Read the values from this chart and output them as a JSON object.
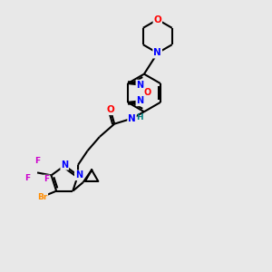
{
  "background_color": "#e8e8e8",
  "bond_color": "#000000",
  "atom_colors": {
    "N": "#0000ff",
    "O": "#ff0000",
    "Br": "#ff8c00",
    "F": "#cc00cc",
    "H": "#008080",
    "C": "#000000"
  }
}
